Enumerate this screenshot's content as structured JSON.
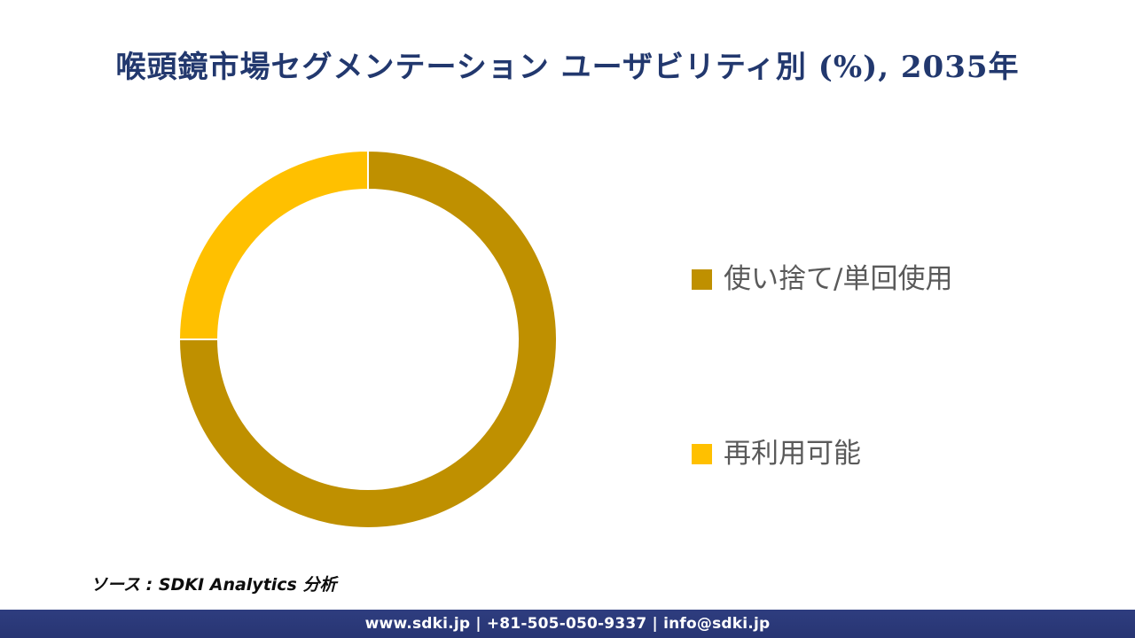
{
  "title": "喉頭鏡市場セグメンテーション ユーザビリティ別 (%), 2035年",
  "chart_data": {
    "type": "pie",
    "subtype": "donut",
    "title": "喉頭鏡市場セグメンテーション ユーザビリティ別 (%), 2035年",
    "unit": "%",
    "year": "2035",
    "slices": [
      {
        "label": "使い捨て/単回使用",
        "value": 75,
        "color": "#BF9000"
      },
      {
        "label": "再利用可能",
        "value": 25,
        "color": "#FFC000"
      }
    ],
    "start_angle_deg": 0,
    "direction": "clockwise",
    "donut_hole_ratio": 0.785,
    "legend_position": "right",
    "data_labels": "none",
    "separator_color": "#FFFFFF"
  },
  "legend": {
    "items": [
      {
        "label": "使い捨て/単回使用",
        "swatch_color": "#BF9000"
      },
      {
        "label": "再利用可能",
        "swatch_color": "#FFC000"
      }
    ],
    "text_color": "#5A5A5A"
  },
  "source_note": "ソース : SDKI Analytics 分析",
  "footer": {
    "text": "www.sdki.jp | +81-505-050-9337 | info@sdki.jp",
    "background_color": "#2B3875"
  },
  "colors": {
    "title_text": "#22386E",
    "background": "#FFFFFF"
  }
}
